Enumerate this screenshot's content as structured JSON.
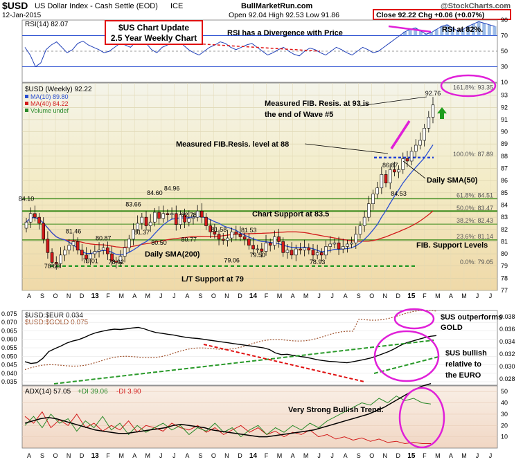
{
  "header": {
    "symbol": "$USD",
    "name": "US Dollar Index - Cash Settle (EOD)",
    "exchange": "ICE",
    "date": "12-Jan-2015",
    "site": "BullMarketRun.com",
    "watermark": "@StockCharts.com",
    "ohlc": "Open 92.04   High 92.53   Low 91.86",
    "close": "Close 92.22  Chg +0.06 (+0.07%)"
  },
  "annotations": {
    "update_title": "$US Chart Update",
    "update_sub": "2.5 Year Weekly Chart",
    "rsi_divergence": "RSI has a Divergence with Price",
    "rsi_82": "RSI at 82%.",
    "fib93": [
      "Measured FIB. Resis. at 93 is",
      "the end of Wave #5"
    ],
    "fib88": "Measured FIB.Resis. level at 88",
    "sma50": "Daily SMA(50)",
    "support835": "Chart Support at 83.5",
    "fib_support": "FIB. Support Levels",
    "sma200": "Daily SMA(200)",
    "lt_support": "L/T Support at 79",
    "us_gold": [
      "$US outperforms",
      "GOLD"
    ],
    "us_euro": [
      "$US bullish",
      "relative to",
      "the EURO"
    ],
    "adx_trend": "Very Strong Bullish Trend."
  },
  "chart_data": [
    {
      "type": "line",
      "panel": "RSI",
      "title": "RSI(14) 82.07",
      "ylim": [
        10,
        90
      ],
      "y_ticks": [
        10,
        30,
        50,
        70,
        90
      ],
      "ref_lines": [
        30,
        50,
        70
      ],
      "values": [
        55,
        45,
        30,
        35,
        52,
        58,
        62,
        55,
        48,
        52,
        60,
        63,
        58,
        55,
        52,
        48,
        50,
        55,
        60,
        58,
        55,
        62,
        65,
        60,
        52,
        48,
        55,
        58,
        62,
        65,
        58,
        52,
        48,
        45,
        50,
        55,
        58,
        62,
        60,
        55,
        52,
        55,
        58,
        60,
        55,
        50,
        45,
        48,
        52,
        55,
        50,
        46,
        44,
        50,
        54,
        52,
        48,
        45,
        50,
        55,
        52,
        48,
        45,
        50,
        55,
        52,
        48,
        50,
        55,
        60,
        65,
        70,
        75,
        78,
        80,
        76,
        72,
        74,
        78,
        82,
        84,
        80,
        76,
        78,
        82,
        85,
        88,
        86,
        84,
        82
      ]
    },
    {
      "type": "candlestick",
      "panel": "Price",
      "title": "$USD (Weekly) 92.22",
      "legend": [
        {
          "name": "MA(10) 89.80",
          "color": "#2b4fd1"
        },
        {
          "name": "MA(40) 84.22",
          "color": "#d21a1a"
        },
        {
          "name": "Volume undef",
          "color": "#2a8a2a"
        }
      ],
      "ylim": [
        77,
        94
      ],
      "y_ticks": [
        77,
        78,
        79,
        80,
        81,
        82,
        83,
        84,
        85,
        86,
        87,
        88,
        89,
        90,
        91,
        92,
        93
      ],
      "x_tick_labels": [
        "A",
        "S",
        "O",
        "N",
        "D",
        "13",
        "F",
        "M",
        "A",
        "M",
        "J",
        "J",
        "A",
        "S",
        "O",
        "N",
        "D",
        "14",
        "F",
        "M",
        "A",
        "M",
        "J",
        "J",
        "A",
        "S",
        "O",
        "N",
        "D",
        "15",
        "F",
        "M",
        "A",
        "M",
        "J",
        "J"
      ],
      "closes": [
        82.6,
        83.3,
        83.0,
        82.5,
        81.2,
        80.1,
        79.3,
        79.2,
        79.9,
        80.3,
        80.7,
        81.0,
        80.3,
        79.9,
        79.6,
        80.0,
        80.2,
        80.3,
        80.5,
        80.0,
        79.4,
        79.3,
        79.8,
        80.5,
        81.2,
        82.0,
        82.5,
        83.0,
        82.3,
        82.6,
        83.4,
        82.9,
        83.3,
        83.2,
        83.3,
        82.4,
        83.2,
        82.6,
        82.9,
        83.0,
        83.5,
        83.0,
        82.3,
        81.8,
        81.6,
        81.2,
        81.1,
        81.3,
        81.8,
        81.6,
        81.4,
        81.2,
        80.7,
        80.4,
        80.4,
        80.2,
        80.9,
        80.7,
        81.4,
        81.0,
        80.1,
        80.3,
        79.9,
        80.4,
        80.3,
        80.5,
        80.3,
        79.9,
        80.1,
        79.9,
        80.6,
        80.8,
        80.9,
        80.4,
        80.6,
        80.8,
        80.9,
        81.6,
        82.3,
        83.0,
        84.1,
        84.9,
        85.4,
        86.5,
        85.8,
        86.9,
        86.7,
        86.9,
        87.8,
        87.6,
        88.4,
        88.9,
        89.3,
        90.3,
        91.2,
        92.2
      ],
      "fib_levels": [
        {
          "label": "161.8%: 93.35",
          "value": 93.35
        },
        {
          "label": "100.0%: 87.89",
          "value": 87.89
        },
        {
          "label": "61.8%: 84.51",
          "value": 84.51
        },
        {
          "label": "50.0%: 83.47",
          "value": 83.47
        },
        {
          "label": "38.2%: 82.43",
          "value": 82.43
        },
        {
          "label": "23.6%: 81.14",
          "value": 81.14
        },
        {
          "label": "0.0%: 79.05",
          "value": 79.05
        }
      ],
      "data_labels": [
        {
          "text": "84.10",
          "index": 0,
          "value": 84.1
        },
        {
          "text": "78.60",
          "index": 6,
          "value": 78.6
        },
        {
          "text": "81.46",
          "index": 11,
          "value": 81.46
        },
        {
          "text": "79.01",
          "index": 15,
          "value": 79.01
        },
        {
          "text": "80.87",
          "index": 18,
          "value": 80.87
        },
        {
          "text": "78.92",
          "index": 21,
          "value": 78.92
        },
        {
          "text": "83.66",
          "index": 25,
          "value": 83.66
        },
        {
          "text": "81.37",
          "index": 27,
          "value": 81.37
        },
        {
          "text": "84.60",
          "index": 30,
          "value": 84.6
        },
        {
          "text": "80.50",
          "index": 31,
          "value": 80.5
        },
        {
          "text": "84.96",
          "index": 34,
          "value": 84.96
        },
        {
          "text": "82.78",
          "index": 38,
          "value": 82.78
        },
        {
          "text": "80.77",
          "index": 38,
          "value": 80.77
        },
        {
          "text": "81.58",
          "index": 45,
          "value": 81.58
        },
        {
          "text": "79.06",
          "index": 48,
          "value": 79.06
        },
        {
          "text": "81.53",
          "index": 52,
          "value": 81.53
        },
        {
          "text": "79.50",
          "index": 54,
          "value": 79.5
        },
        {
          "text": "78.93",
          "index": 68,
          "value": 78.93
        },
        {
          "text": "86.87",
          "index": 85,
          "value": 86.87
        },
        {
          "text": "84.53",
          "index": 87,
          "value": 84.53
        },
        {
          "text": "92.76",
          "index": 95,
          "value": 92.76
        }
      ]
    },
    {
      "type": "line",
      "panel": "Ratio",
      "series": [
        {
          "name": "$USD:$EUR 0.034",
          "color": "#000000",
          "axis": "left"
        },
        {
          "name": "$USD:$GOLD 0.075",
          "color": "#a0522d",
          "axis": "right"
        }
      ],
      "left_axis": [
        0.035,
        0.04,
        0.045,
        0.05,
        0.055,
        0.06,
        0.065,
        0.07,
        0.075
      ],
      "right_axis": [
        0.028,
        0.03,
        0.032,
        0.034,
        0.036,
        0.038
      ],
      "eur_values": [
        0.0468,
        0.0458,
        0.0462,
        0.0488,
        0.0528,
        0.0545,
        0.056,
        0.0578,
        0.059,
        0.0598,
        0.0612,
        0.0628,
        0.064,
        0.0648,
        0.0655,
        0.066,
        0.0658,
        0.0662,
        0.0667,
        0.067,
        0.0662,
        0.065,
        0.064,
        0.0635,
        0.063,
        0.0625,
        0.0618,
        0.0612,
        0.0608,
        0.0605,
        0.06,
        0.0595,
        0.059,
        0.0585,
        0.058,
        0.0575,
        0.057,
        0.0565,
        0.056,
        0.0555,
        0.055,
        0.054,
        0.052,
        0.051,
        0.0512,
        0.0505,
        0.05,
        0.0495,
        0.0488,
        0.048,
        0.0475,
        0.047,
        0.0468,
        0.0465,
        0.0462,
        0.0468,
        0.0475,
        0.0482,
        0.049,
        0.0502,
        0.0515,
        0.0528,
        0.0545,
        0.0565,
        0.058,
        0.059,
        0.06,
        0.061,
        0.0618,
        0.0622
      ]
    },
    {
      "type": "line",
      "panel": "ADX",
      "series": [
        {
          "name": "ADX(14) 57.05",
          "color": "#000000"
        },
        {
          "name": "+DI 39.06",
          "color": "#2a8a2a"
        },
        {
          "name": "-DI 3.90",
          "color": "#d21a1a"
        }
      ],
      "ylim": [
        0,
        55
      ],
      "y_ticks": [
        10,
        20,
        30,
        40,
        50
      ],
      "adx": [
        22,
        24,
        26,
        27,
        26,
        24,
        22,
        20,
        18,
        16,
        15,
        14,
        13,
        13,
        14,
        15,
        16,
        17,
        18,
        20,
        21,
        20,
        19,
        18,
        16,
        15,
        14,
        13,
        12,
        11,
        10,
        10,
        11,
        12,
        13,
        14,
        15,
        16,
        18,
        20,
        22,
        24,
        26,
        28,
        30,
        33,
        36,
        40,
        44,
        48,
        52,
        55,
        57
      ],
      "pdi": [
        20,
        28,
        18,
        30,
        22,
        26,
        15,
        24,
        18,
        28,
        16,
        22,
        12,
        20,
        14,
        18,
        22,
        16,
        20,
        12,
        18,
        15,
        22,
        14,
        18,
        10,
        16,
        20,
        12,
        18,
        14,
        20,
        16,
        22,
        18,
        24,
        28,
        32,
        36,
        40,
        38,
        44,
        40,
        46,
        42,
        44,
        40,
        39
      ],
      "mdi": [
        28,
        22,
        32,
        18,
        25,
        20,
        30,
        18,
        22,
        15,
        20,
        16,
        24,
        14,
        20,
        18,
        15,
        22,
        18,
        16,
        20,
        14,
        18,
        12,
        16,
        20,
        14,
        18,
        12,
        15,
        10,
        14,
        12,
        16,
        10,
        12,
        8,
        10,
        7,
        9,
        6,
        8,
        5,
        6,
        4,
        5,
        4,
        4
      ]
    }
  ]
}
